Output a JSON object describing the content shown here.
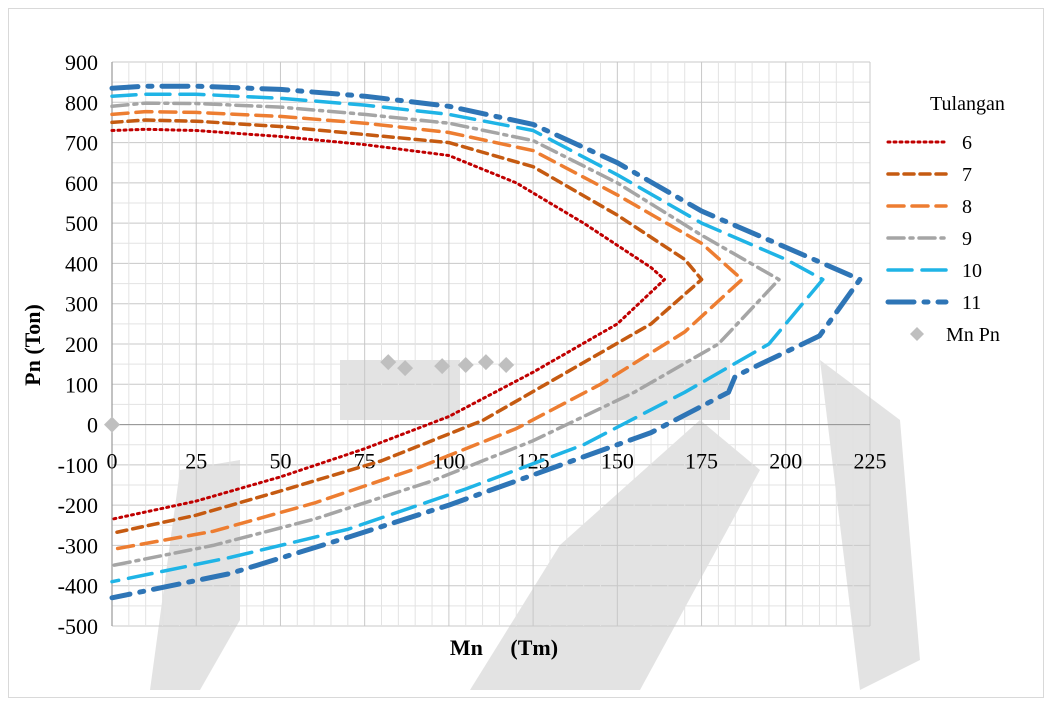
{
  "chart_data": {
    "type": "line",
    "xlabel": "Mn     (Tm)",
    "ylabel": "Pn (Ton)",
    "xlim": [
      0,
      225
    ],
    "ylim": [
      -500,
      900
    ],
    "x_ticks": [
      "0",
      "25",
      "50",
      "75",
      "100",
      "125",
      "150",
      "175",
      "200",
      "225"
    ],
    "y_ticks": [
      "900",
      "800",
      "700",
      "600",
      "500",
      "400",
      "300",
      "200",
      "100",
      "0",
      "-100",
      "-200",
      "-300",
      "-400",
      "-500"
    ],
    "grid": true,
    "legend_title": "Tulangan",
    "legend_position": "right",
    "series": [
      {
        "name": "6",
        "color": "#c00000",
        "dash": "2,4",
        "width": 3,
        "points": [
          [
            0,
            730
          ],
          [
            10,
            733
          ],
          [
            25,
            730
          ],
          [
            50,
            715
          ],
          [
            75,
            695
          ],
          [
            100,
            668
          ],
          [
            120,
            600
          ],
          [
            140,
            500
          ],
          [
            160,
            390
          ],
          [
            164,
            360
          ],
          [
            150,
            250
          ],
          [
            125,
            130
          ],
          [
            100,
            20
          ],
          [
            75,
            -60
          ],
          [
            50,
            -130
          ],
          [
            25,
            -190
          ],
          [
            0,
            -235
          ]
        ]
      },
      {
        "name": "7",
        "color": "#c55a11",
        "dash": "10,6",
        "width": 3.5,
        "points": [
          [
            0,
            750
          ],
          [
            10,
            756
          ],
          [
            25,
            753
          ],
          [
            50,
            740
          ],
          [
            75,
            720
          ],
          [
            100,
            700
          ],
          [
            125,
            640
          ],
          [
            150,
            520
          ],
          [
            170,
            410
          ],
          [
            175,
            360
          ],
          [
            160,
            250
          ],
          [
            135,
            130
          ],
          [
            110,
            10
          ],
          [
            80,
            -90
          ],
          [
            50,
            -165
          ],
          [
            25,
            -225
          ],
          [
            0,
            -270
          ]
        ]
      },
      {
        "name": "8",
        "color": "#ed7d31",
        "dash": "16,8",
        "width": 3.5,
        "points": [
          [
            0,
            770
          ],
          [
            10,
            777
          ],
          [
            25,
            775
          ],
          [
            50,
            765
          ],
          [
            75,
            748
          ],
          [
            100,
            725
          ],
          [
            125,
            680
          ],
          [
            150,
            570
          ],
          [
            175,
            450
          ],
          [
            187,
            360
          ],
          [
            170,
            230
          ],
          [
            145,
            100
          ],
          [
            120,
            -10
          ],
          [
            90,
            -110
          ],
          [
            60,
            -195
          ],
          [
            30,
            -265
          ],
          [
            0,
            -310
          ]
        ]
      },
      {
        "name": "9",
        "color": "#a5a5a5",
        "dash": "16,6,3,6",
        "width": 3.5,
        "points": [
          [
            0,
            790
          ],
          [
            10,
            798
          ],
          [
            25,
            797
          ],
          [
            50,
            788
          ],
          [
            75,
            770
          ],
          [
            100,
            748
          ],
          [
            125,
            705
          ],
          [
            150,
            600
          ],
          [
            175,
            470
          ],
          [
            198,
            360
          ],
          [
            180,
            200
          ],
          [
            155,
            80
          ],
          [
            125,
            -40
          ],
          [
            95,
            -140
          ],
          [
            60,
            -235
          ],
          [
            30,
            -300
          ],
          [
            0,
            -350
          ]
        ]
      },
      {
        "name": "10",
        "color": "#1fb4e6",
        "dash": "24,10",
        "width": 3.5,
        "points": [
          [
            0,
            815
          ],
          [
            10,
            820
          ],
          [
            25,
            820
          ],
          [
            50,
            810
          ],
          [
            75,
            793
          ],
          [
            100,
            770
          ],
          [
            125,
            730
          ],
          [
            150,
            620
          ],
          [
            175,
            500
          ],
          [
            200,
            410
          ],
          [
            211,
            360
          ],
          [
            195,
            200
          ],
          [
            170,
            80
          ],
          [
            140,
            -50
          ],
          [
            105,
            -160
          ],
          [
            70,
            -260
          ],
          [
            35,
            -330
          ],
          [
            0,
            -390
          ]
        ]
      },
      {
        "name": "11",
        "color": "#2e75b6",
        "dash": "26,10,4,10",
        "width": 5,
        "points": [
          [
            0,
            835
          ],
          [
            10,
            840
          ],
          [
            25,
            840
          ],
          [
            50,
            832
          ],
          [
            75,
            815
          ],
          [
            100,
            790
          ],
          [
            125,
            745
          ],
          [
            150,
            650
          ],
          [
            175,
            530
          ],
          [
            200,
            440
          ],
          [
            222,
            360
          ],
          [
            210,
            220
          ],
          [
            185,
            120
          ],
          [
            183,
            80
          ],
          [
            160,
            -20
          ],
          [
            130,
            -110
          ],
          [
            100,
            -200
          ],
          [
            70,
            -280
          ],
          [
            35,
            -370
          ],
          [
            0,
            -430
          ]
        ]
      }
    ],
    "scatter_series": {
      "name": "Mn Pn",
      "color": "#bfbfbf",
      "points": [
        [
          0,
          0
        ],
        [
          82,
          155
        ],
        [
          87,
          140
        ],
        [
          98,
          145
        ],
        [
          105,
          148
        ],
        [
          111,
          155
        ],
        [
          117,
          148
        ]
      ]
    }
  }
}
